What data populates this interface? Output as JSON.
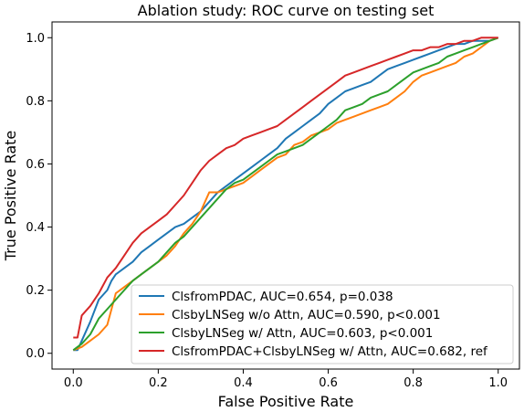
{
  "chart_data": {
    "type": "line",
    "title": "Ablation study: ROC curve on testing set",
    "xlabel": "False Positive Rate",
    "ylabel": "True Positive Rate",
    "xlim": [
      -0.05,
      1.05
    ],
    "ylim": [
      -0.05,
      1.05
    ],
    "xticks": [
      "0.0",
      "0.2",
      "0.4",
      "0.6",
      "0.8",
      "1.0"
    ],
    "yticks": [
      "0.0",
      "0.2",
      "0.4",
      "0.6",
      "0.8",
      "1.0"
    ],
    "grid": false,
    "legend_position": "lower-right",
    "series": [
      {
        "name": "ClsfromPDAC, AUC=0.654, p=0.038",
        "color": "#1f77b4",
        "x": [
          0,
          0.01,
          0.02,
          0.04,
          0.06,
          0.08,
          0.09,
          0.1,
          0.12,
          0.14,
          0.16,
          0.18,
          0.2,
          0.22,
          0.24,
          0.26,
          0.28,
          0.3,
          0.32,
          0.34,
          0.36,
          0.38,
          0.4,
          0.42,
          0.44,
          0.46,
          0.48,
          0.5,
          0.52,
          0.54,
          0.56,
          0.58,
          0.6,
          0.62,
          0.64,
          0.66,
          0.68,
          0.7,
          0.72,
          0.74,
          0.76,
          0.78,
          0.8,
          0.82,
          0.84,
          0.86,
          0.88,
          0.9,
          0.92,
          0.94,
          0.96,
          0.98,
          1.0
        ],
        "y": [
          0.01,
          0.01,
          0.04,
          0.1,
          0.17,
          0.2,
          0.23,
          0.25,
          0.27,
          0.29,
          0.32,
          0.34,
          0.36,
          0.38,
          0.4,
          0.41,
          0.43,
          0.45,
          0.48,
          0.51,
          0.53,
          0.55,
          0.57,
          0.59,
          0.61,
          0.63,
          0.65,
          0.68,
          0.7,
          0.72,
          0.74,
          0.76,
          0.79,
          0.81,
          0.83,
          0.84,
          0.85,
          0.86,
          0.88,
          0.9,
          0.91,
          0.92,
          0.93,
          0.94,
          0.95,
          0.96,
          0.97,
          0.98,
          0.98,
          0.99,
          0.99,
          0.99,
          1.0
        ]
      },
      {
        "name": "ClsbyLNSeg w/o Attn, AUC=0.590, p<0.001",
        "color": "#ff7f0e",
        "x": [
          0,
          0.02,
          0.04,
          0.06,
          0.08,
          0.1,
          0.12,
          0.14,
          0.16,
          0.18,
          0.2,
          0.22,
          0.24,
          0.26,
          0.28,
          0.3,
          0.32,
          0.34,
          0.36,
          0.38,
          0.4,
          0.42,
          0.44,
          0.46,
          0.48,
          0.5,
          0.52,
          0.54,
          0.56,
          0.58,
          0.6,
          0.62,
          0.64,
          0.66,
          0.68,
          0.7,
          0.72,
          0.74,
          0.76,
          0.78,
          0.8,
          0.82,
          0.84,
          0.86,
          0.88,
          0.9,
          0.92,
          0.94,
          0.96,
          0.98,
          1.0
        ],
        "y": [
          0.01,
          0.02,
          0.04,
          0.06,
          0.09,
          0.19,
          0.21,
          0.23,
          0.25,
          0.27,
          0.29,
          0.31,
          0.34,
          0.38,
          0.41,
          0.45,
          0.51,
          0.51,
          0.52,
          0.53,
          0.54,
          0.56,
          0.58,
          0.6,
          0.62,
          0.63,
          0.66,
          0.67,
          0.69,
          0.7,
          0.71,
          0.73,
          0.74,
          0.75,
          0.76,
          0.77,
          0.78,
          0.79,
          0.81,
          0.83,
          0.86,
          0.88,
          0.89,
          0.9,
          0.91,
          0.92,
          0.94,
          0.95,
          0.97,
          0.99,
          1.0
        ]
      },
      {
        "name": "ClsbyLNSeg w/ Attn, AUC=0.603, p<0.001",
        "color": "#2ca02c",
        "x": [
          0,
          0.02,
          0.04,
          0.06,
          0.08,
          0.1,
          0.12,
          0.14,
          0.16,
          0.18,
          0.2,
          0.22,
          0.24,
          0.26,
          0.28,
          0.3,
          0.32,
          0.34,
          0.36,
          0.38,
          0.4,
          0.42,
          0.44,
          0.46,
          0.48,
          0.5,
          0.52,
          0.54,
          0.56,
          0.58,
          0.6,
          0.62,
          0.64,
          0.66,
          0.68,
          0.7,
          0.72,
          0.74,
          0.76,
          0.78,
          0.8,
          0.82,
          0.84,
          0.86,
          0.88,
          0.9,
          0.92,
          0.94,
          0.96,
          0.98,
          1.0
        ],
        "y": [
          0.01,
          0.03,
          0.06,
          0.11,
          0.14,
          0.17,
          0.2,
          0.23,
          0.25,
          0.27,
          0.29,
          0.32,
          0.35,
          0.37,
          0.4,
          0.43,
          0.46,
          0.49,
          0.52,
          0.54,
          0.55,
          0.57,
          0.59,
          0.61,
          0.63,
          0.64,
          0.65,
          0.66,
          0.68,
          0.7,
          0.72,
          0.74,
          0.77,
          0.78,
          0.79,
          0.81,
          0.82,
          0.83,
          0.85,
          0.87,
          0.89,
          0.9,
          0.91,
          0.92,
          0.94,
          0.95,
          0.96,
          0.97,
          0.98,
          0.99,
          1.0
        ]
      },
      {
        "name": "ClsfromPDAC+ClsbyLNSeg w/ Attn, AUC=0.682, ref",
        "color": "#d62728",
        "x": [
          0,
          0.01,
          0.02,
          0.04,
          0.06,
          0.08,
          0.1,
          0.12,
          0.14,
          0.16,
          0.18,
          0.2,
          0.22,
          0.24,
          0.26,
          0.28,
          0.3,
          0.32,
          0.34,
          0.36,
          0.38,
          0.4,
          0.42,
          0.44,
          0.46,
          0.48,
          0.5,
          0.52,
          0.54,
          0.56,
          0.58,
          0.6,
          0.62,
          0.64,
          0.66,
          0.68,
          0.7,
          0.72,
          0.74,
          0.76,
          0.78,
          0.8,
          0.82,
          0.84,
          0.86,
          0.88,
          0.9,
          0.92,
          0.94,
          0.96,
          0.98,
          1.0
        ],
        "y": [
          0.05,
          0.05,
          0.12,
          0.15,
          0.19,
          0.24,
          0.27,
          0.31,
          0.35,
          0.38,
          0.4,
          0.42,
          0.44,
          0.47,
          0.5,
          0.54,
          0.58,
          0.61,
          0.63,
          0.65,
          0.66,
          0.68,
          0.69,
          0.7,
          0.71,
          0.72,
          0.74,
          0.76,
          0.78,
          0.8,
          0.82,
          0.84,
          0.86,
          0.88,
          0.89,
          0.9,
          0.91,
          0.92,
          0.93,
          0.94,
          0.95,
          0.96,
          0.96,
          0.97,
          0.97,
          0.98,
          0.98,
          0.99,
          0.99,
          1.0,
          1.0,
          1.0
        ]
      }
    ]
  }
}
